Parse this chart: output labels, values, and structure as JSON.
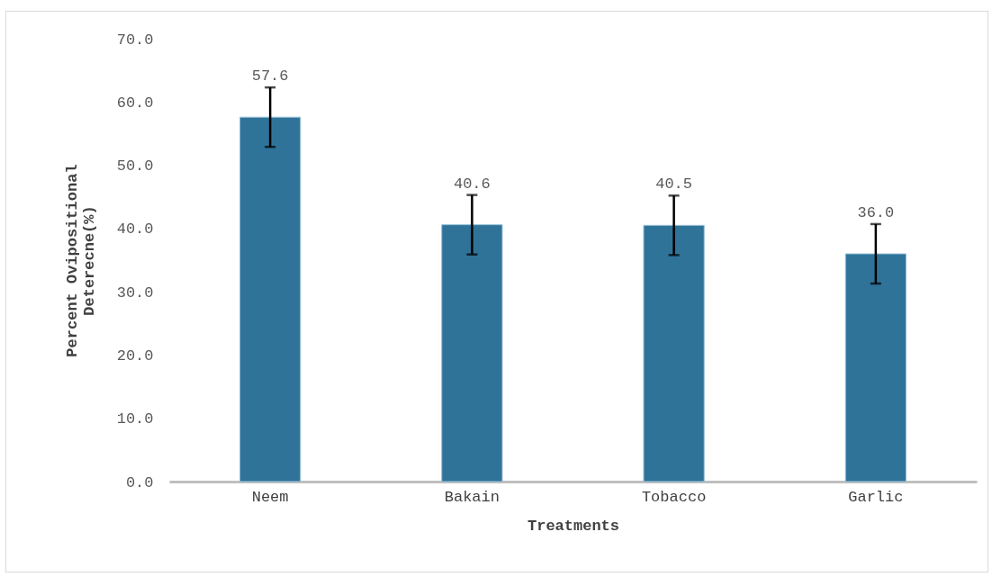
{
  "chart_data": {
    "type": "bar",
    "xlabel": "Treatments",
    "ylabel": "Percent Ovipositional Deterecne(%)",
    "categories": [
      "Neem",
      "Bakain",
      "Tobacco",
      "Garlic"
    ],
    "values": [
      57.6,
      40.6,
      40.5,
      36.0
    ],
    "value_labels": [
      "57.6",
      "40.6",
      "40.5",
      "36.0"
    ],
    "errors": [
      4.7,
      4.7,
      4.7,
      4.7
    ],
    "color": "#2f7399",
    "ylim": [
      0,
      70
    ],
    "yticks": [
      {
        "value": 0,
        "label": "0.0"
      },
      {
        "value": 10,
        "label": "10.0"
      },
      {
        "value": 20,
        "label": "20.0"
      },
      {
        "value": 30,
        "label": "30.0"
      },
      {
        "value": 40,
        "label": "40.0"
      },
      {
        "value": 50,
        "label": "50.0"
      },
      {
        "value": 60,
        "label": "60.0"
      },
      {
        "value": 70,
        "label": "70.0"
      }
    ],
    "grid": false
  }
}
